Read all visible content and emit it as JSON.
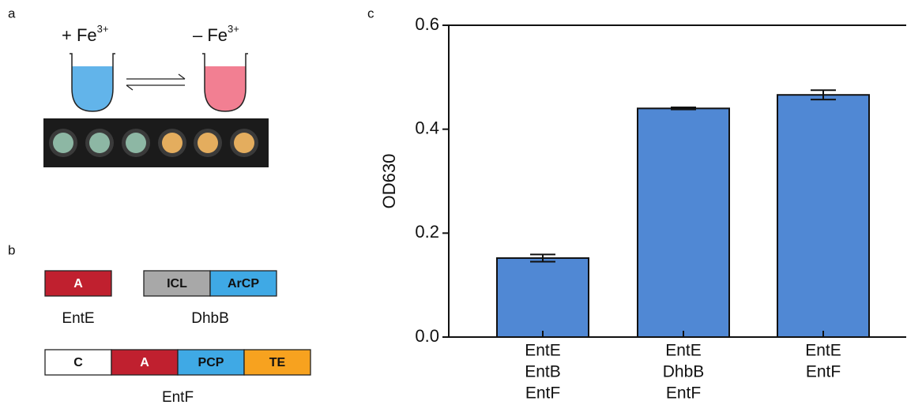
{
  "panel_a": {
    "label": "a",
    "plus": {
      "text": "+ Fe",
      "sup": "3+"
    },
    "minus": {
      "text": "– Fe",
      "sup": "3+"
    }
  },
  "panel_b": {
    "label": "b",
    "enzymes": [
      {
        "name": "EntE",
        "domains": [
          "A"
        ]
      },
      {
        "name": "DhbB",
        "domains": [
          "ICL",
          "ArCP"
        ]
      },
      {
        "name": "EntF",
        "domains": [
          "C",
          "A",
          "PCP",
          "TE"
        ]
      }
    ]
  },
  "panel_c_label": "c",
  "chart_data": {
    "type": "bar",
    "categories": [
      [
        "EntE",
        "EntB",
        "EntF"
      ],
      [
        "EntE",
        "DhbB",
        "EntF"
      ],
      [
        "EntE",
        "EntF"
      ]
    ],
    "values": [
      0.152,
      0.44,
      0.466
    ],
    "errors": [
      0.007,
      0.002,
      0.009
    ],
    "color": "#5088d4",
    "ylabel": "OD630",
    "ylim": [
      0,
      0.6
    ],
    "yticks": [
      {
        "value": 0,
        "label": "0.0"
      },
      0.2,
      0.4,
      0.6
    ]
  }
}
